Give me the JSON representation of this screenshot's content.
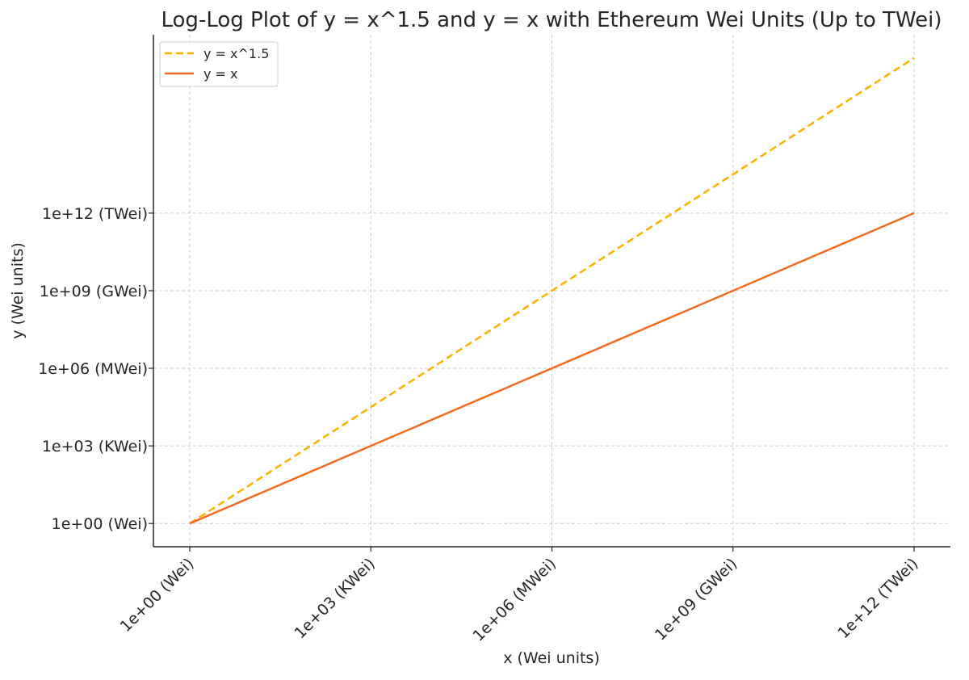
{
  "chart_data": {
    "type": "line",
    "title": "Log-Log Plot of y = x^1.5 and y = x with Ethereum Wei Units (Up to TWei)",
    "xlabel": "x (Wei units)",
    "ylabel": "y (Wei units)",
    "xscale": "log",
    "yscale": "log",
    "xlim": [
      0.25,
      4000000000000.0
    ],
    "ylim": [
      0.126,
      7.9e+18
    ],
    "grid": true,
    "legend": "top-left",
    "xticks": [
      {
        "value": 1,
        "label": "1e+00 (Wei)"
      },
      {
        "value": 1000.0,
        "label": "1e+03 (KWei)"
      },
      {
        "value": 1000000.0,
        "label": "1e+06 (MWei)"
      },
      {
        "value": 1000000000.0,
        "label": "1e+09 (GWei)"
      },
      {
        "value": 1000000000000.0,
        "label": "1e+12 (TWei)"
      }
    ],
    "yticks": [
      {
        "value": 1,
        "label": "1e+00 (Wei)"
      },
      {
        "value": 1000.0,
        "label": "1e+03 (KWei)"
      },
      {
        "value": 1000000.0,
        "label": "1e+06 (MWei)"
      },
      {
        "value": 1000000000.0,
        "label": "1e+09 (GWei)"
      },
      {
        "value": 1000000000000.0,
        "label": "1e+12 (TWei)"
      }
    ],
    "x": [
      1,
      1000.0,
      1000000.0,
      1000000000.0,
      1000000000000.0
    ],
    "series": [
      {
        "name": "y = x^1.5",
        "values": [
          1,
          31600.0,
          1000000000.0,
          31600000000000.0,
          1e+18
        ],
        "color": "#FFB000",
        "style": "dashed"
      },
      {
        "name": "y = x",
        "values": [
          1,
          1000.0,
          1000000.0,
          1000000000.0,
          1000000000000.0
        ],
        "color": "#F26B21",
        "style": "solid"
      }
    ]
  }
}
